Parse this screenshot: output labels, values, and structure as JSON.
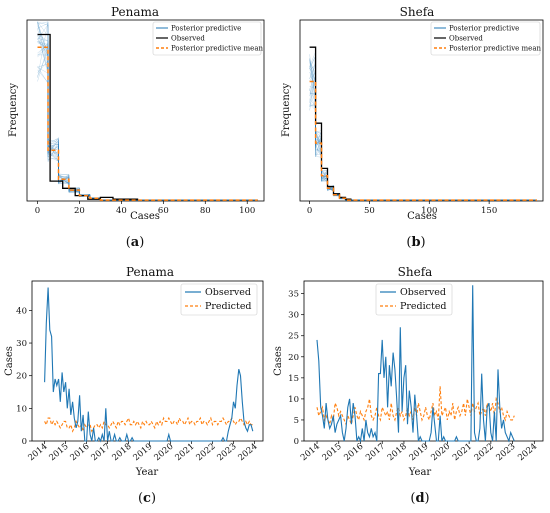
{
  "chart_data": [
    {
      "id": "a",
      "type": "line",
      "title": "Penama",
      "xlabel": "Cases",
      "ylabel": "Frequency",
      "caption_letter": "a",
      "xlim": [
        -5,
        108
      ],
      "ylim": [
        0,
        1
      ],
      "xticks": [
        "0",
        "20",
        "40",
        "60",
        "80",
        "100"
      ],
      "xtick_values": [
        0,
        20,
        40,
        60,
        80,
        100
      ],
      "legend": [
        "Posterior predictive",
        "Observed",
        "Posterior predictive mean"
      ],
      "series": [
        {
          "name": "Observed",
          "color": "#000000",
          "x": [
            0,
            6,
            6,
            12,
            12,
            18,
            18,
            24,
            24,
            30,
            30,
            36,
            36,
            48
          ],
          "y": [
            0.92,
            0.92,
            0.11,
            0.11,
            0.07,
            0.07,
            0.03,
            0.03,
            0.01,
            0.01,
            0.02,
            0.02,
            0.01,
            0.01
          ]
        },
        {
          "name": "Posterior predictive mean",
          "color": "#ff7f0e",
          "x": [
            0,
            5,
            5,
            10,
            10,
            15,
            15,
            20,
            20,
            25,
            25,
            30,
            30,
            105
          ],
          "y": [
            0.85,
            0.85,
            0.28,
            0.28,
            0.12,
            0.12,
            0.06,
            0.06,
            0.03,
            0.03,
            0.015,
            0.015,
            0.005,
            0.005
          ]
        }
      ]
    },
    {
      "id": "b",
      "type": "line",
      "title": "Shefa",
      "xlabel": "Cases",
      "ylabel": "Frequency",
      "caption_letter": "b",
      "xlim": [
        -8,
        195
      ],
      "ylim": [
        0,
        1
      ],
      "xticks": [
        "0",
        "50",
        "100",
        "150"
      ],
      "xtick_values": [
        0,
        50,
        100,
        150
      ],
      "legend": [
        "Posterior predictive",
        "Observed",
        "Posterior predictive mean"
      ],
      "series": [
        {
          "name": "Observed",
          "color": "#000000",
          "x": [
            0,
            5,
            5,
            10,
            10,
            15,
            15,
            20,
            20,
            25,
            25,
            30,
            30,
            35
          ],
          "y": [
            0.85,
            0.85,
            0.43,
            0.43,
            0.18,
            0.18,
            0.08,
            0.08,
            0.04,
            0.04,
            0.02,
            0.02,
            0.01,
            0.01
          ]
        },
        {
          "name": "Posterior predictive mean",
          "color": "#ff7f0e",
          "x": [
            0,
            5,
            5,
            10,
            10,
            15,
            15,
            20,
            20,
            25,
            25,
            30,
            30,
            190
          ],
          "y": [
            0.66,
            0.66,
            0.32,
            0.32,
            0.14,
            0.14,
            0.07,
            0.07,
            0.035,
            0.035,
            0.015,
            0.015,
            0.005,
            0.005
          ]
        }
      ]
    },
    {
      "id": "c",
      "type": "line",
      "title": "Penama",
      "xlabel": "Year",
      "ylabel": "Cases",
      "caption_letter": "c",
      "x_start": 2014.0,
      "x_step": 0.0833,
      "xlim": [
        2013.4,
        2024.4
      ],
      "ylim": [
        0,
        49
      ],
      "yticks": [
        0,
        10,
        20,
        30,
        40
      ],
      "xticks": [
        "2014",
        "2015",
        "2016",
        "2017",
        "2018",
        "2019",
        "2020",
        "2021",
        "2022",
        "2023",
        "2024"
      ],
      "legend": [
        "Observed",
        "Predicted"
      ],
      "series": [
        {
          "name": "Observed",
          "color": "#1f77b4",
          "values": [
            18,
            36,
            47,
            34,
            32,
            15,
            19,
            17,
            19,
            12,
            21,
            15,
            18,
            10,
            16,
            8,
            12,
            7,
            4,
            6,
            14,
            3,
            8,
            0,
            0,
            9,
            2,
            0,
            4,
            0,
            0,
            1,
            0,
            2,
            0,
            10,
            0,
            3,
            0,
            0,
            2,
            0,
            0,
            1,
            0,
            0,
            0,
            2,
            0,
            0,
            1,
            0,
            0,
            0,
            0,
            0,
            0,
            0,
            0,
            0,
            0,
            0,
            0,
            0,
            0,
            0,
            0,
            0,
            0,
            0,
            0,
            2,
            0,
            0,
            0,
            0,
            0,
            0,
            0,
            0,
            0,
            0,
            0,
            0,
            0,
            0,
            0,
            0,
            0,
            0,
            0,
            0,
            0,
            0,
            0,
            0,
            0,
            0,
            0,
            0,
            0,
            0,
            1,
            0,
            0,
            3,
            5,
            7,
            12,
            10,
            17,
            22,
            20,
            12,
            6,
            4,
            3,
            5,
            5,
            3
          ]
        },
        {
          "name": "Predicted",
          "color": "#ff7f0e",
          "values": [
            6,
            5,
            7,
            7,
            5,
            6,
            5,
            6,
            5,
            4,
            5,
            6,
            6,
            4,
            4,
            5,
            3,
            4,
            6,
            5,
            4,
            5,
            3,
            5,
            4,
            5,
            5,
            3,
            4,
            5,
            5,
            4,
            5,
            4,
            6,
            5,
            5,
            4,
            5,
            6,
            5,
            4,
            6,
            5,
            6,
            6,
            5,
            6,
            7,
            5,
            5,
            6,
            5,
            6,
            5,
            4,
            6,
            5,
            6,
            5,
            5,
            6,
            5,
            4,
            6,
            5,
            6,
            5,
            7,
            6,
            6,
            7,
            6,
            5,
            6,
            6,
            5,
            7,
            6,
            6,
            5,
            6,
            7,
            5,
            6,
            6,
            5,
            6,
            6,
            7,
            5,
            6,
            6,
            5,
            6,
            7,
            5,
            6,
            6,
            5,
            6,
            6,
            7,
            6,
            5,
            6,
            6,
            7,
            6,
            5,
            6,
            6,
            7,
            6,
            5,
            6,
            5,
            6,
            5,
            5
          ]
        }
      ]
    },
    {
      "id": "d",
      "type": "line",
      "title": "Shefa",
      "xlabel": "Year",
      "ylabel": "Cases",
      "caption_letter": "d",
      "x_start": 2014.0,
      "x_step": 0.0833,
      "xlim": [
        2013.4,
        2024.4
      ],
      "ylim": [
        0,
        38
      ],
      "yticks": [
        0,
        5,
        10,
        15,
        20,
        25,
        30,
        35
      ],
      "xticks": [
        "2014",
        "2015",
        "2016",
        "2017",
        "2018",
        "2019",
        "2020",
        "2021",
        "2022",
        "2023",
        "2024"
      ],
      "legend": [
        "Observed",
        "Predicted"
      ],
      "series": [
        {
          "name": "Observed",
          "color": "#1f77b4",
          "values": [
            24,
            19,
            8,
            6,
            3,
            9,
            5,
            3,
            4,
            6,
            2,
            4,
            5,
            6,
            2,
            0,
            3,
            8,
            10,
            4,
            9,
            6,
            0,
            1,
            0,
            3,
            0,
            5,
            2,
            1,
            3,
            1,
            2,
            0,
            16,
            16,
            24,
            15,
            20,
            8,
            18,
            13,
            21,
            17,
            10,
            2,
            27,
            7,
            15,
            18,
            4,
            12,
            8,
            2,
            11,
            6,
            0,
            1,
            0,
            0,
            0,
            0,
            0,
            2,
            8,
            4,
            0,
            0,
            6,
            0,
            1,
            0,
            0,
            0,
            0,
            0,
            0,
            1,
            0,
            0,
            0,
            0,
            0,
            0,
            0,
            0,
            37,
            2,
            0,
            0,
            3,
            16,
            5,
            0,
            8,
            9,
            2,
            0,
            7,
            0,
            17,
            8,
            3,
            5,
            2,
            1,
            0,
            2,
            1,
            0
          ]
        },
        {
          "name": "Predicted",
          "color": "#ff7f0e",
          "values": [
            8,
            6,
            7,
            8,
            5,
            6,
            5,
            4,
            6,
            5,
            9,
            8,
            6,
            7,
            6,
            5,
            4,
            6,
            5,
            4,
            6,
            8,
            6,
            5,
            7,
            6,
            5,
            7,
            8,
            10,
            6,
            5,
            6,
            8,
            6,
            5,
            8,
            7,
            6,
            7,
            5,
            9,
            6,
            5,
            7,
            8,
            6,
            7,
            5,
            6,
            8,
            6,
            7,
            5,
            8,
            6,
            9,
            7,
            5,
            6,
            8,
            6,
            5,
            7,
            9,
            6,
            7,
            5,
            13,
            6,
            7,
            8,
            5,
            7,
            6,
            9,
            5,
            7,
            8,
            6,
            7,
            9,
            6,
            10,
            8,
            6,
            9,
            7,
            8,
            9,
            6,
            7,
            8,
            6,
            9,
            8,
            7,
            9,
            6,
            10,
            9,
            7,
            8,
            6,
            5,
            7,
            6,
            5,
            5,
            6
          ]
        }
      ]
    }
  ],
  "captions": {
    "a": "(a)",
    "b": "(b)",
    "c": "(c)",
    "d": "(d)"
  }
}
